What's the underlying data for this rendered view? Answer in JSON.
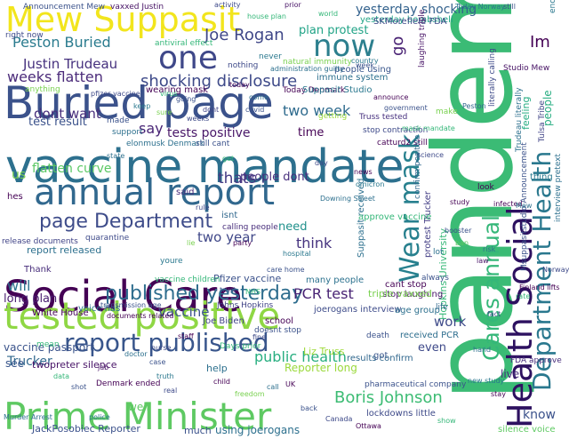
{
  "words": [
    {
      "t": "pandemic",
      "c": "#3bbb75"
    },
    {
      "t": "Health Social",
      "c": "#2d1160"
    },
    {
      "t": "Department Health",
      "c": "#2a788e"
    },
    {
      "t": "Wear mask",
      "c": "#27808e"
    },
    {
      "t": "Cares annual",
      "c": "#35b779"
    },
    {
      "t": "vaccine mandate",
      "c": "#2d708e"
    },
    {
      "t": "Social Care",
      "c": "#440154"
    },
    {
      "t": "tested positive",
      "c": "#8fd744"
    },
    {
      "t": "Prime Minister",
      "c": "#5ec962"
    },
    {
      "t": "Buried page",
      "c": "#3b528b"
    },
    {
      "t": "annual report",
      "c": "#31688e"
    },
    {
      "t": "Mew Suppasit",
      "c": "#f2e51d"
    },
    {
      "t": "one",
      "c": "#3f4889"
    },
    {
      "t": "now",
      "c": "#2c7f8e"
    },
    {
      "t": "report published",
      "c": "#39568c"
    },
    {
      "t": "published yesterday",
      "c": "#2e6d8e"
    },
    {
      "t": "page Department",
      "c": "#3e4c8a"
    },
    {
      "t": "Joe Rogan",
      "c": "#3f4788"
    },
    {
      "t": "Peston Buried",
      "c": "#2a7b8e"
    },
    {
      "t": "Justin Trudeau",
      "c": "#46317e"
    },
    {
      "t": "weeks flatten",
      "c": "#4b2b7a"
    },
    {
      "t": "shocking disclosure",
      "c": "#3e4a89"
    },
    {
      "t": "yesterday shocking",
      "c": "#33628d"
    },
    {
      "t": "plan protest",
      "c": "#20a386"
    },
    {
      "t": "two week",
      "c": "#2f6b8e"
    },
    {
      "t": "Boris Johnson",
      "c": "#3dbc74"
    },
    {
      "t": "Im",
      "c": "#440154"
    },
    {
      "t": "dont want",
      "c": "#472d7b"
    },
    {
      "t": "test result",
      "c": "#3b528b"
    },
    {
      "t": "flatten curve",
      "c": "#5ac864"
    },
    {
      "t": "thats",
      "c": "#443a83"
    },
    {
      "t": "two year",
      "c": "#3f4788"
    },
    {
      "t": "PCR test",
      "c": "#482374"
    },
    {
      "t": "public health",
      "c": "#28ae80"
    },
    {
      "t": "vaccine",
      "c": "#3b528b"
    },
    {
      "t": "will",
      "c": "#2c728e"
    },
    {
      "t": "think",
      "c": "#46337f"
    },
    {
      "t": "need",
      "c": "#21918c"
    },
    {
      "t": "say",
      "c": "#482475"
    },
    {
      "t": "time",
      "c": "#440154"
    },
    {
      "t": "work",
      "c": "#3e4a89"
    },
    {
      "t": "know",
      "c": "#3b528b"
    },
    {
      "t": "tests positive",
      "c": "#481668"
    },
    {
      "t": "people dont",
      "c": "#472f7d"
    },
    {
      "t": "long plan",
      "c": "#481d6f"
    },
    {
      "t": "vaccine passport",
      "c": "#3a538b"
    },
    {
      "t": "Trucker",
      "c": "#31688e"
    },
    {
      "t": "Reporter long",
      "c": "#9bd93c"
    },
    {
      "t": "JackPosobiec Reporter",
      "c": "#3b518b"
    },
    {
      "t": "using joerogans",
      "c": "#2d708e"
    },
    {
      "t": "much",
      "c": "#3b528b"
    },
    {
      "t": "us",
      "c": "#7ad151"
    },
    {
      "t": "Suppasit received",
      "c": "#2d708e"
    },
    {
      "t": "protest Trucker",
      "c": "#433e85"
    },
    {
      "t": "Hopkins University",
      "c": "#37b878"
    },
    {
      "t": "Studio Mew",
      "c": "#471365"
    },
    {
      "t": "people",
      "c": "#27ad81"
    },
    {
      "t": "feeling",
      "c": "#25ac82"
    },
    {
      "t": "go",
      "c": "#482173"
    },
    {
      "t": "Pfizer vaccine",
      "c": "#3b528b"
    },
    {
      "t": "many people",
      "c": "#2c728e"
    },
    {
      "t": "Liz Truss",
      "c": "#9fda3a"
    },
    {
      "t": "White House",
      "c": "#440154"
    },
    {
      "t": "Joe Biden",
      "c": "#414487"
    },
    {
      "t": "see",
      "c": "#39568c"
    },
    {
      "t": "even",
      "c": "#3e4989"
    },
    {
      "t": "received PCR",
      "c": "#2e6e8e"
    },
    {
      "t": "results confirm",
      "c": "#31688e"
    },
    {
      "t": "approve vaccine",
      "c": "#35b779"
    },
    {
      "t": "joerogans interview",
      "c": "#3e4c8a"
    },
    {
      "t": "cant stop",
      "c": "#440154"
    },
    {
      "t": "stop laughing",
      "c": "#481467"
    },
    {
      "t": "live",
      "c": "#472c7a"
    },
    {
      "t": "thing",
      "c": "#2a788e"
    },
    {
      "t": "Announcement Mew",
      "c": "#3b528b"
    },
    {
      "t": "vaxxed Justin",
      "c": "#471365"
    },
    {
      "t": "yesterday bombshell",
      "c": "#20a486"
    },
    {
      "t": "SKMorefield FDA",
      "c": "#3e4a89"
    },
    {
      "t": "antiviral effect",
      "c": "#35b779"
    },
    {
      "t": "natural immunity",
      "c": "#7ad151"
    },
    {
      "t": "immune system",
      "c": "#2d708e"
    },
    {
      "t": "people using",
      "c": "#39568c"
    },
    {
      "t": "Today Denmark",
      "c": "#440154"
    },
    {
      "t": "Suppasit Studio",
      "c": "#2a788e"
    },
    {
      "t": "Truss tested",
      "c": "#46307e"
    },
    {
      "t": "stop contraction",
      "c": "#3e4a89"
    },
    {
      "t": "elonmusk Denmark",
      "c": "#2d708e"
    },
    {
      "t": "still cant",
      "c": "#3b528b"
    },
    {
      "t": "catturd2 still",
      "c": "#440154"
    },
    {
      "t": "calling people",
      "c": "#472d7b"
    },
    {
      "t": "vaccine children",
      "c": "#35b779"
    },
    {
      "t": "triple vaxxed",
      "c": "#7ad151"
    },
    {
      "t": "ended restriction",
      "c": "#2a788e"
    },
    {
      "t": "interview pretext",
      "c": "#2d708e"
    },
    {
      "t": "Msuppasitstudio Announcement",
      "c": "#3b528b"
    },
    {
      "t": "Tulsa Tribe",
      "c": "#414487"
    },
    {
      "t": "confirm positive",
      "c": "#31688e"
    },
    {
      "t": "lockdowns little",
      "c": "#3e4a89"
    },
    {
      "t": "silence voice",
      "c": "#5ec962"
    },
    {
      "t": "pharmaceutical company",
      "c": "#3b528b"
    },
    {
      "t": "Denmark ended",
      "c": "#440154"
    },
    {
      "t": "twopreter silence",
      "c": "#481467"
    },
    {
      "t": "report released",
      "c": "#2d708e"
    },
    {
      "t": "voice has",
      "c": "#2c728e"
    },
    {
      "t": "Thank",
      "c": "#472c7a"
    },
    {
      "t": "hes",
      "c": "#440154"
    },
    {
      "t": "isnt",
      "c": "#31688e"
    },
    {
      "t": "made",
      "c": "#3b528b"
    },
    {
      "t": "support",
      "c": "#2d708e"
    },
    {
      "t": "quarantine",
      "c": "#3e4a89"
    },
    {
      "t": "release documents",
      "c": "#414487"
    },
    {
      "t": "said",
      "c": "#472d7b"
    },
    {
      "t": "youre",
      "c": "#2a788e"
    },
    {
      "t": "school",
      "c": "#440154"
    },
    {
      "t": "death",
      "c": "#3b528b"
    },
    {
      "t": "age group",
      "c": "#2d708e"
    },
    {
      "t": "got",
      "c": "#39568c"
    },
    {
      "t": "Days prior",
      "c": "#35b779"
    },
    {
      "t": "right now",
      "c": "#3e4a89"
    },
    {
      "t": "well",
      "c": "#5ec962"
    },
    {
      "t": "look",
      "c": "#440154"
    },
    {
      "t": "lot",
      "c": "#2d708e"
    },
    {
      "t": "always",
      "c": "#3b528b"
    },
    {
      "t": "anything",
      "c": "#7ad151"
    },
    {
      "t": "nothing",
      "c": "#3e4a89"
    },
    {
      "t": "never",
      "c": "#2a788e"
    },
    {
      "t": "wearing mask",
      "c": "#440154"
    },
    {
      "t": "Johns Hopkins",
      "c": "#414487"
    },
    {
      "t": "doesnt stop",
      "c": "#3b528b"
    },
    {
      "t": "help",
      "c": "#2d708e"
    },
    {
      "t": "mean",
      "c": "#35b779"
    },
    {
      "t": "life",
      "c": "#31688e"
    },
    {
      "t": "make",
      "c": "#7ad151"
    },
    {
      "t": "getting",
      "c": "#9bd93c"
    },
    {
      "t": "literally calling",
      "c": "#3e4a89"
    },
    {
      "t": "Trudeau literally",
      "c": "#2d708e"
    },
    {
      "t": "FDA approve",
      "c": "#472d7b"
    },
    {
      "t": "laughing triple",
      "c": "#481467"
    },
    {
      "t": "transmission age",
      "c": "#3b528b"
    },
    {
      "t": "documents related",
      "c": "#440154"
    },
    {
      "t": "Murder Arrest",
      "c": "#2d708e"
    },
    {
      "t": "pfizer vaccine",
      "c": "#3e4a89"
    },
    {
      "t": "Today Norway",
      "c": "#2a788e"
    },
    {
      "t": "Peston",
      "c": "#31688e"
    },
    {
      "t": "mask mandate",
      "c": "#35b779"
    },
    {
      "t": "infected",
      "c": "#440154"
    },
    {
      "t": "week",
      "c": "#3b528b"
    },
    {
      "t": "Mew",
      "c": "#2d708e"
    },
    {
      "t": "Norway lifts",
      "c": "#3e4a89"
    },
    {
      "t": "Finland lifts",
      "c": "#440154"
    },
    {
      "t": "new study",
      "c": "#2a788e"
    },
    {
      "t": "house plan",
      "c": "#35b779"
    },
    {
      "t": "still",
      "c": "#3b528b"
    },
    {
      "t": "prior",
      "c": "#481467"
    },
    {
      "t": "activity",
      "c": "#3e4a89"
    },
    {
      "t": "administration guilty",
      "c": "#2d708e"
    },
    {
      "t": "announce",
      "c": "#440154"
    },
    {
      "t": "virus",
      "c": "#35b779"
    },
    {
      "t": "going",
      "c": "#3b528b"
    },
    {
      "t": "dont",
      "c": "#414487"
    },
    {
      "t": "keep",
      "c": "#2a788e"
    },
    {
      "t": "come",
      "c": "#2d708e"
    },
    {
      "t": "sure",
      "c": "#7ad151"
    },
    {
      "t": "weeks",
      "c": "#3e4a89"
    },
    {
      "t": "today",
      "c": "#440154"
    },
    {
      "t": "covid",
      "c": "#3b528b"
    },
    {
      "t": "state",
      "c": "#2d708e"
    },
    {
      "t": "get",
      "c": "#35b779"
    },
    {
      "t": "day",
      "c": "#3e4a89"
    },
    {
      "t": "news",
      "c": "#440154"
    },
    {
      "t": "omicron",
      "c": "#2a788e"
    },
    {
      "t": "booster",
      "c": "#3b528b"
    },
    {
      "t": "ban",
      "c": "#5ec962"
    },
    {
      "t": "law",
      "c": "#481467"
    },
    {
      "t": "fact",
      "c": "#3e4a89"
    },
    {
      "t": "hand",
      "c": "#2d708e"
    },
    {
      "t": "stay",
      "c": "#440154"
    },
    {
      "t": "show",
      "c": "#35b779"
    },
    {
      "t": "case",
      "c": "#3b528b"
    },
    {
      "t": "truth",
      "c": "#2a788e"
    },
    {
      "t": "real",
      "c": "#3e4a89"
    },
    {
      "t": "child",
      "c": "#440154"
    },
    {
      "t": "freedom",
      "c": "#7ad151"
    },
    {
      "t": "call",
      "c": "#2d708e"
    },
    {
      "t": "back",
      "c": "#3b528b"
    },
    {
      "t": "Canada",
      "c": "#3e4a89"
    },
    {
      "t": "Ottawa",
      "c": "#440154"
    },
    {
      "t": "police",
      "c": "#2a788e"
    },
    {
      "t": "data",
      "c": "#35b779"
    },
    {
      "t": "shot",
      "c": "#3b528b"
    },
    {
      "t": "jab",
      "c": "#481467"
    },
    {
      "t": "doctor",
      "c": "#2d708e"
    },
    {
      "t": "nurse",
      "c": "#3e4a89"
    },
    {
      "t": "staff",
      "c": "#440154"
    },
    {
      "t": "NHS",
      "c": "#35b779"
    },
    {
      "t": "care home",
      "c": "#3b528b"
    },
    {
      "t": "hospital",
      "c": "#2a788e"
    },
    {
      "t": "rule",
      "c": "#3e4a89"
    },
    {
      "t": "party",
      "c": "#440154"
    },
    {
      "t": "Downing Street",
      "c": "#2d708e"
    },
    {
      "t": "lie",
      "c": "#7ad151"
    },
    {
      "t": "trust",
      "c": "#3b528b"
    },
    {
      "t": "fine",
      "c": "#3e4a89"
    },
    {
      "t": "UK",
      "c": "#440154"
    },
    {
      "t": "world",
      "c": "#35b779"
    },
    {
      "t": "country",
      "c": "#2a788e"
    },
    {
      "t": "government",
      "c": "#3b528b"
    },
    {
      "t": "science",
      "c": "#3e4a89"
    },
    {
      "t": "study",
      "c": "#440154"
    },
    {
      "t": "risk",
      "c": "#2d708e"
    },
    {
      "t": "rate",
      "c": "#35b779"
    }
  ]
}
